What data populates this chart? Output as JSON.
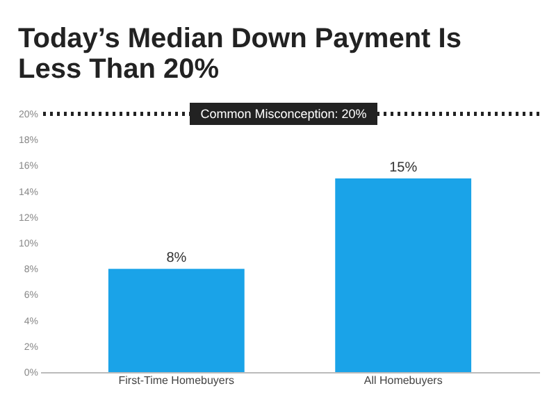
{
  "chart_data": {
    "type": "bar",
    "title": [
      "Today’s Median Down Payment Is",
      "Less Than 20%"
    ],
    "categories": [
      "First-Time Homebuyers",
      "All Homebuyers"
    ],
    "values": [
      8,
      15
    ],
    "color": "#1aa3e8",
    "value_labels": [
      "8%",
      "15%"
    ],
    "ylim": [
      0,
      20
    ],
    "yticks": [
      {
        "value": 0,
        "label": "0%"
      },
      {
        "value": 2,
        "label": "2%"
      },
      {
        "value": 4,
        "label": "4%"
      },
      {
        "value": 6,
        "label": "6%"
      },
      {
        "value": 8,
        "label": "8%"
      },
      {
        "value": 10,
        "label": "10%"
      },
      {
        "value": 12,
        "label": "12%"
      },
      {
        "value": 14,
        "label": "14%"
      },
      {
        "value": 16,
        "label": "16%"
      },
      {
        "value": 18,
        "label": "18%"
      },
      {
        "value": 20,
        "label": "20%"
      }
    ],
    "ref_lines": [
      {
        "axis": "y",
        "value": 20,
        "label": "Common Misconception: 20%",
        "color": "#222222",
        "line_style": "dotted"
      }
    ],
    "grid": false
  }
}
